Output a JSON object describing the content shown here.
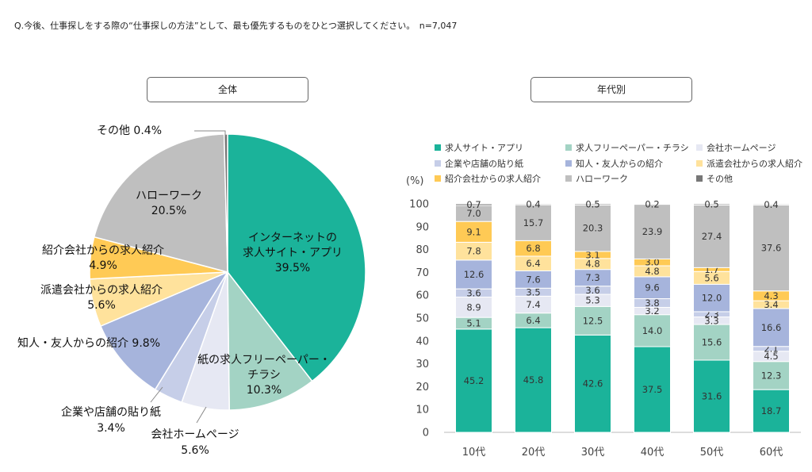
{
  "question": "Q.今後、仕事探しをする際の“仕事探しの方法”として、最も優先するものをひとつ選択してください。　n=7,047",
  "colors": {
    "求人サイト・アプリ": "#1BB39A",
    "求人フリーペーパー・チラシ": "#A3D3C4",
    "会社ホームページ": "#E6E8F3",
    "企業や店舗の貼り紙": "#C6CEE8",
    "知人・友人からの紹介": "#A6B4DC",
    "派遣会社からの求人紹介": "#FFE29C",
    "紹介会社からの求人紹介": "#FFCA55",
    "ハローワーク": "#BFBFBF",
    "その他": "#777777"
  },
  "chart_data": [
    {
      "type": "pie",
      "panel_label": "全体",
      "slices": [
        {
          "key": "求人サイト・アプリ",
          "label_lines": [
            "インターネットの",
            "求人サイト・アプリ"
          ],
          "pct_text": "39.5%",
          "value": 39.5
        },
        {
          "key": "求人フリーペーパー・チラシ",
          "label_lines": [
            "紙の求人フリーペーパー・",
            "チラシ"
          ],
          "pct_text": "10.3%",
          "value": 10.3
        },
        {
          "key": "会社ホームページ",
          "label_lines": [
            "会社ホームページ"
          ],
          "pct_text": "5.6%",
          "value": 5.6
        },
        {
          "key": "企業や店舗の貼り紙",
          "label_lines": [
            "企業や店舗の貼り紙"
          ],
          "pct_text": "3.4%",
          "value": 3.4
        },
        {
          "key": "知人・友人からの紹介",
          "label_lines": [
            "知人・友人からの紹介"
          ],
          "pct_text": "9.8%",
          "value": 9.8
        },
        {
          "key": "派遣会社からの求人紹介",
          "label_lines": [
            "派遣会社からの求人紹介"
          ],
          "pct_text": "5.6%",
          "value": 5.6
        },
        {
          "key": "紹介会社からの求人紹介",
          "label_lines": [
            "紹介会社からの求人紹介"
          ],
          "pct_text": "4.9%",
          "value": 4.9
        },
        {
          "key": "ハローワーク",
          "label_lines": [
            "ハローワーク"
          ],
          "pct_text": "20.5%",
          "value": 20.5
        },
        {
          "key": "その他",
          "label_lines": [
            "その他"
          ],
          "pct_text": "0.4%",
          "value": 0.4
        }
      ]
    },
    {
      "type": "bar",
      "stacked": true,
      "panel_label": "年代別",
      "unit_label": "(%)",
      "ylim": [
        0,
        100
      ],
      "yticks": [
        0,
        10,
        20,
        30,
        40,
        50,
        60,
        70,
        80,
        90,
        100
      ],
      "categories": [
        "10代",
        "20代",
        "30代",
        "40代",
        "50代",
        "60代"
      ],
      "legend": [
        "求人サイト・アプリ",
        "求人フリーペーパー・チラシ",
        "会社ホームページ",
        "企業や店舗の貼り紙",
        "知人・友人からの紹介",
        "派遣会社からの求人紹介",
        "紹介会社からの求人紹介",
        "ハローワーク",
        "その他"
      ],
      "series": [
        {
          "name": "求人サイト・アプリ",
          "values": [
            45.2,
            45.8,
            42.6,
            37.5,
            31.6,
            18.7
          ]
        },
        {
          "name": "求人フリーペーパー・チラシ",
          "values": [
            5.1,
            6.4,
            12.5,
            14.0,
            15.6,
            12.3
          ]
        },
        {
          "name": "会社ホームページ",
          "values": [
            8.9,
            7.4,
            5.3,
            3.2,
            3.3,
            4.5
          ]
        },
        {
          "name": "企業や店舗の貼り紙",
          "values": [
            3.6,
            3.5,
            3.6,
            3.8,
            2.3,
            2.1
          ]
        },
        {
          "name": "知人・友人からの紹介",
          "values": [
            12.6,
            7.6,
            7.3,
            9.6,
            12.0,
            16.6
          ]
        },
        {
          "name": "派遣会社からの求人紹介",
          "values": [
            7.8,
            6.4,
            4.8,
            4.8,
            5.6,
            3.4
          ]
        },
        {
          "name": "紹介会社からの求人紹介",
          "values": [
            9.1,
            6.8,
            3.1,
            3.0,
            1.7,
            4.3
          ]
        },
        {
          "name": "ハローワーク",
          "values": [
            7.0,
            15.7,
            20.3,
            23.9,
            27.4,
            37.6
          ]
        },
        {
          "name": "その他",
          "values": [
            0.7,
            0.4,
            0.5,
            0.2,
            0.5,
            0.4
          ]
        }
      ]
    }
  ]
}
